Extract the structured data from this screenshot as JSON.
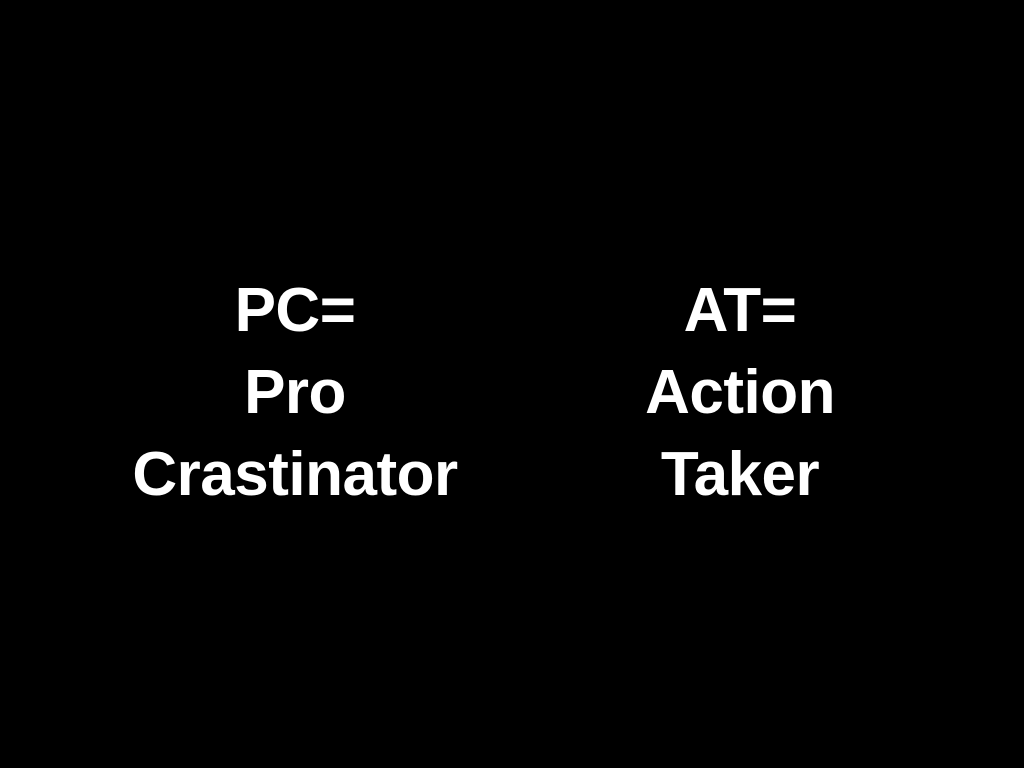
{
  "slide": {
    "background_color": "#000000",
    "text_color": "#ffffff",
    "left_column": {
      "lines": [
        "PC=",
        "Pro",
        "Crastinator"
      ]
    },
    "right_column": {
      "lines": [
        "AT=",
        "Action",
        "Taker"
      ]
    }
  }
}
